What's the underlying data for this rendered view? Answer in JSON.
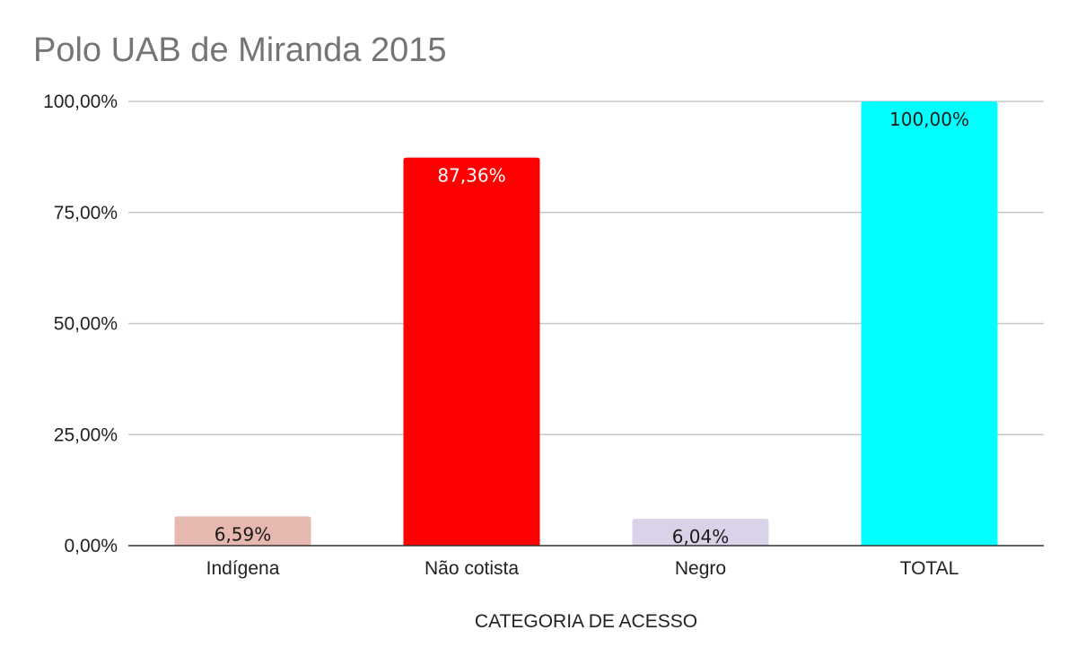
{
  "chart_data": {
    "type": "bar",
    "title": "Polo UAB de Miranda 2015",
    "xlabel": "CATEGORIA DE ACESSO",
    "ylabel": "",
    "categories": [
      "Indígena",
      "Não cotista",
      "Negro",
      "TOTAL"
    ],
    "values": [
      6.59,
      87.36,
      6.04,
      100.0
    ],
    "data_labels": [
      "6,59%",
      "87,36%",
      "6,04%",
      "100,00%"
    ],
    "bar_colors": [
      "#e6b8af",
      "#ff0000",
      "#d9d2e9",
      "#00ffff"
    ],
    "data_label_colors": [
      "#1a1a1a",
      "#ffffff",
      "#1a1a1a",
      "#1a1a1a"
    ],
    "ylim": [
      0,
      100
    ],
    "yticks": [
      0,
      25,
      50,
      75,
      100
    ],
    "ytick_labels": [
      "0,00%",
      "25,00%",
      "50,00%",
      "75,00%",
      "100,00%"
    ],
    "grid": true,
    "legend": "none"
  }
}
